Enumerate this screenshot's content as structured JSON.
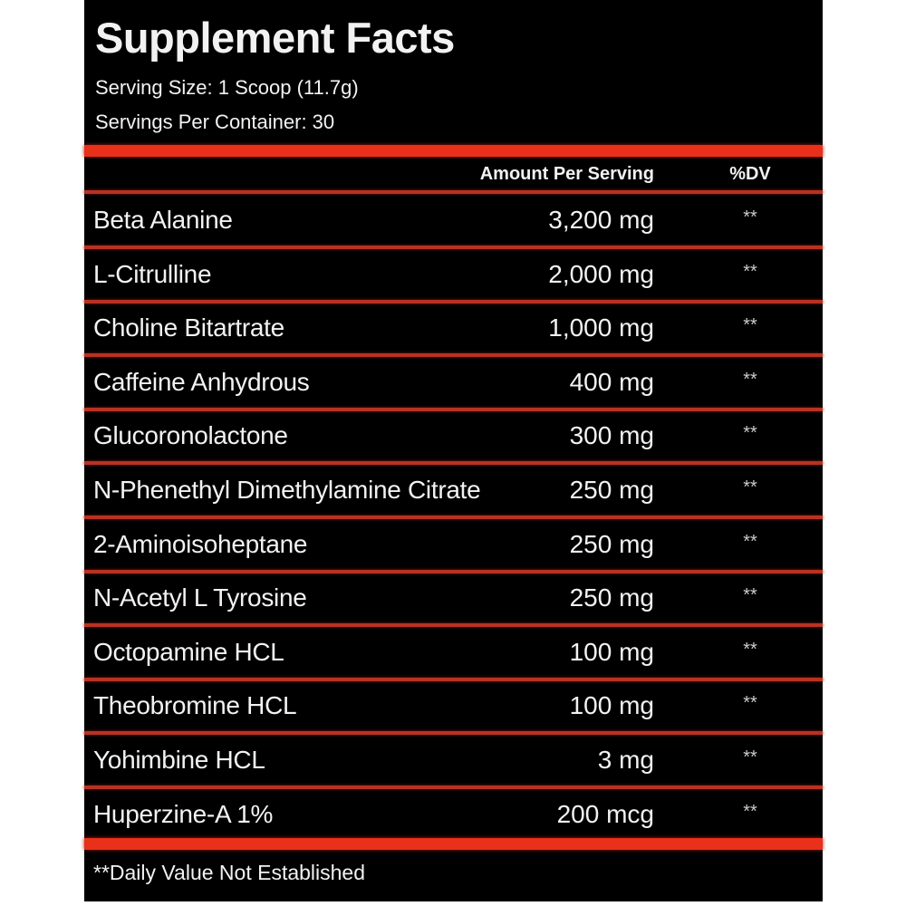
{
  "title": "Supplement Facts",
  "serving_size": "Serving Size: 1 Scoop (11.7g)",
  "servings_per_container": "Servings Per Container: 30",
  "header": {
    "amount": "Amount Per Serving",
    "dv": "%DV"
  },
  "ingredients": [
    {
      "name": "Beta Alanine",
      "amount": "3,200 mg",
      "dv": "**"
    },
    {
      "name": "L-Citrulline",
      "amount": "2,000 mg",
      "dv": "**"
    },
    {
      "name": "Choline Bitartrate",
      "amount": "1,000 mg",
      "dv": "**"
    },
    {
      "name": "Caffeine Anhydrous",
      "amount": "400 mg",
      "dv": "**"
    },
    {
      "name": "Glucoronolactone",
      "amount": "300 mg",
      "dv": "**"
    },
    {
      "name": "N-Phenethyl Dimethylamine Citrate",
      "amount": "250 mg",
      "dv": "**"
    },
    {
      "name": "2-Aminoisoheptane",
      "amount": "250 mg",
      "dv": "**"
    },
    {
      "name": "N-Acetyl L Tyrosine",
      "amount": "250 mg",
      "dv": "**"
    },
    {
      "name": "Octopamine HCL",
      "amount": "100 mg",
      "dv": "**"
    },
    {
      "name": "Theobromine HCL",
      "amount": "100 mg",
      "dv": "**"
    },
    {
      "name": "Yohimbine HCL",
      "amount": "3 mg",
      "dv": "**"
    },
    {
      "name": "Huperzine-A 1%",
      "amount": "200 mcg",
      "dv": "**"
    }
  ],
  "footnote": "**Daily Value Not Established",
  "colors": {
    "background": "#000000",
    "accent": "#e8301a",
    "text": "#f2f2f2"
  }
}
